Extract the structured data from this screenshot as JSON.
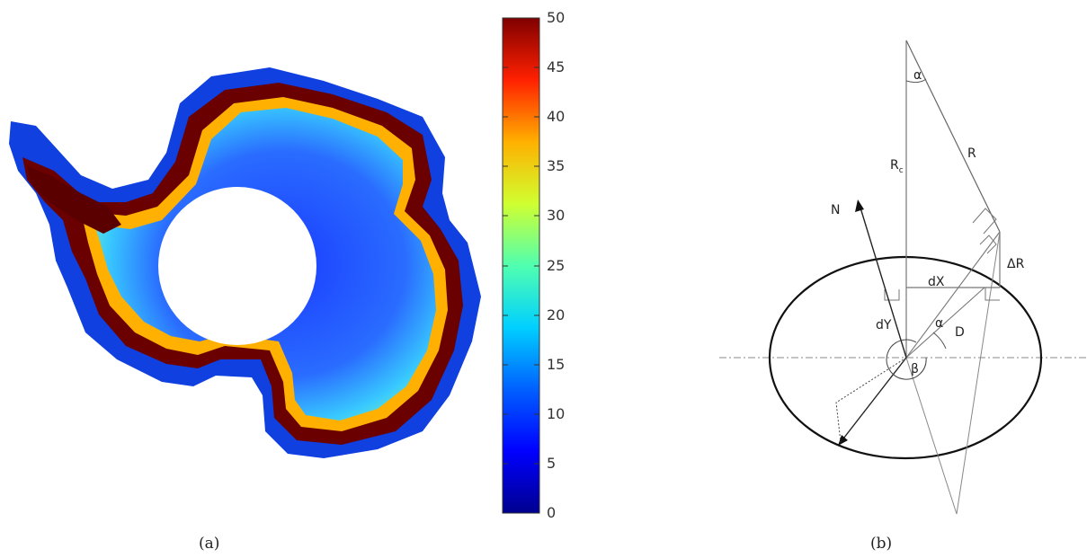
{
  "panel_a": {
    "caption": "(a)",
    "colorbar": {
      "range": [
        0,
        50
      ],
      "ticks": [
        "50",
        "45",
        "40",
        "35",
        "30",
        "25",
        "20",
        "15",
        "10",
        "5",
        "0"
      ],
      "colormap": "jet",
      "colors": [
        "#00008f",
        "#0000ff",
        "#0080ff",
        "#00ffff",
        "#80ff80",
        "#ffff00",
        "#ff8000",
        "#ff0000",
        "#800000"
      ]
    }
  },
  "panel_b": {
    "caption": "(b)",
    "labels": {
      "alpha_top": "α",
      "R": "R",
      "Rc_main": "R",
      "Rc_sub": "c",
      "N": "N",
      "dR": "ΔR",
      "dX": "dX",
      "dY": "dY",
      "alpha_center": "α",
      "D": "D",
      "beta": "β"
    }
  }
}
